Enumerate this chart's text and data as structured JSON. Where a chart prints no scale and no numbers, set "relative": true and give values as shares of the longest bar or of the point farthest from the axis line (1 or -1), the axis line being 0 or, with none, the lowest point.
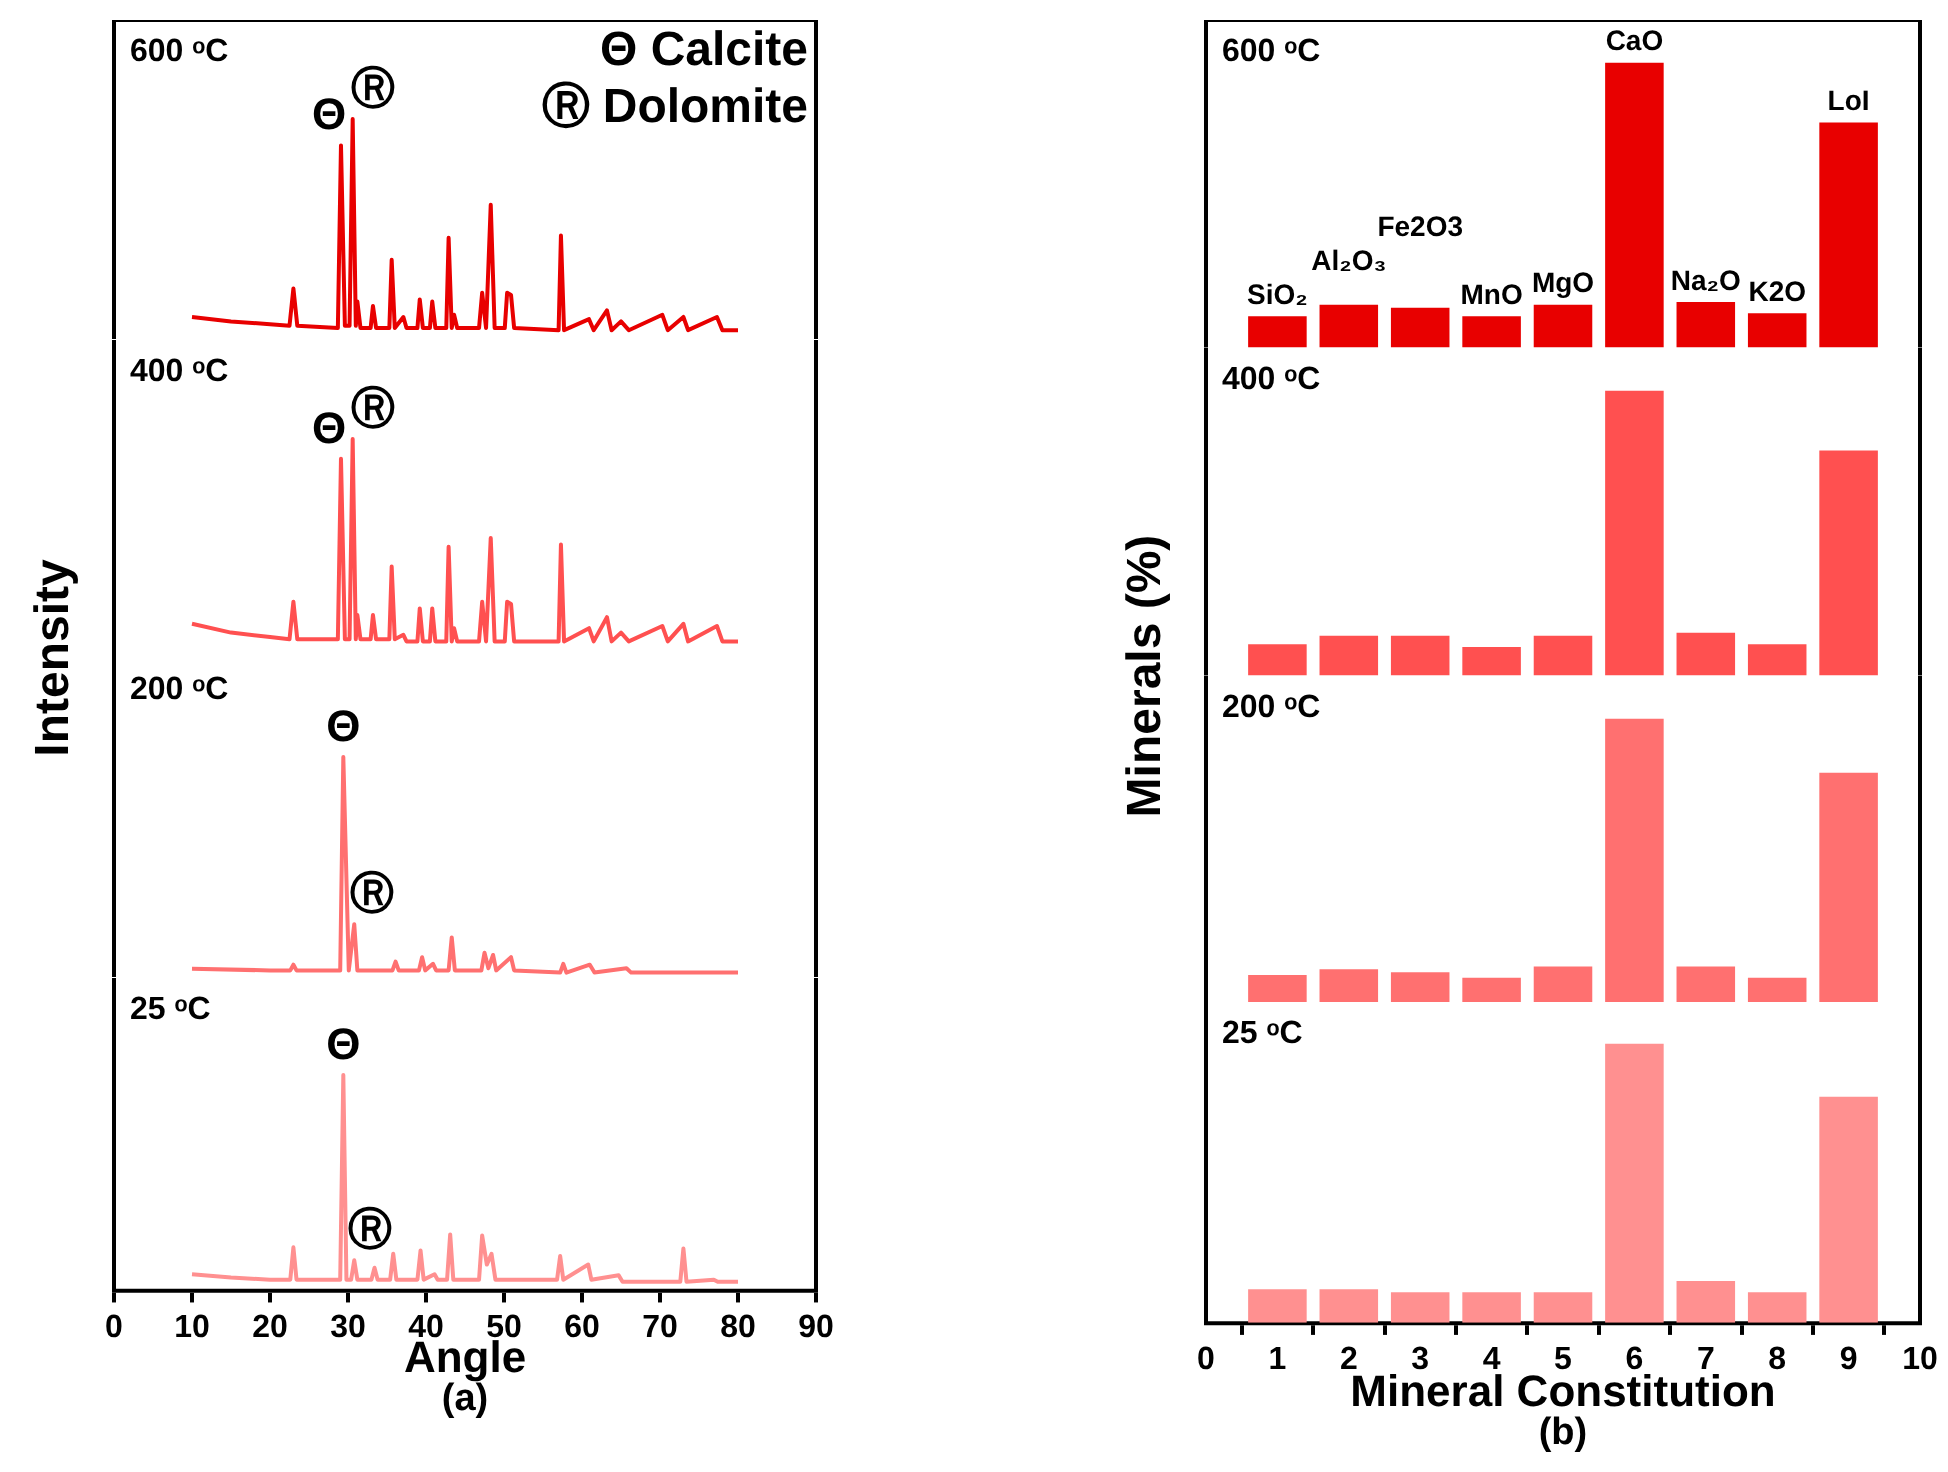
{
  "chart_data": [
    {
      "type": "line",
      "title": "600 ᵒC",
      "ylabel": "Intensity",
      "relative": true,
      "tick_labels": false,
      "xlim": [
        0,
        90
      ],
      "xticks": [
        0,
        10,
        20,
        30,
        40,
        50,
        60,
        70,
        80,
        90
      ],
      "x": [
        10,
        15,
        20,
        22.5,
        23,
        23.5,
        28.7,
        29.1,
        29.6,
        30.2,
        30.6,
        31.0,
        31.2,
        31.6,
        32.9,
        33.2,
        33.6,
        35.3,
        35.6,
        36.0,
        37.1,
        37.5,
        38.9,
        39.2,
        39.6,
        40.5,
        40.8,
        41.2,
        42.6,
        42.9,
        43.3,
        43.6,
        44.0,
        46.8,
        47.2,
        47.7,
        48.3,
        48.8,
        50.1,
        50.4,
        50.9,
        51.3,
        57.0,
        57.3,
        57.7,
        60.9,
        61.5,
        63.2,
        63.8,
        65,
        66,
        70.3,
        71,
        73,
        73.6,
        77.3,
        78,
        80
      ],
      "series": [
        {
          "color": "#e80000",
          "values": [
            0.1,
            0.08,
            0.067,
            0.06,
            0.23,
            0.06,
            0.05,
            0.88,
            0.06,
            0.06,
            1.0,
            0.06,
            0.17,
            0.05,
            0.05,
            0.15,
            0.05,
            0.05,
            0.36,
            0.05,
            0.1,
            0.05,
            0.05,
            0.18,
            0.05,
            0.05,
            0.17,
            0.05,
            0.05,
            0.46,
            0.05,
            0.11,
            0.05,
            0.05,
            0.21,
            0.05,
            0.61,
            0.05,
            0.05,
            0.21,
            0.2,
            0.05,
            0.04,
            0.47,
            0.04,
            0.09,
            0.04,
            0.13,
            0.04,
            0.08,
            0.04,
            0.11,
            0.04,
            0.1,
            0.04,
            0.1,
            0.04,
            0.04
          ]
        }
      ],
      "annotations": [
        {
          "text": "Θ",
          "x": 29.1,
          "y": 0.88
        },
        {
          "text": "Ⓡ",
          "x": 30.6,
          "y": 1.0
        },
        "Θ Calcite",
        "Ⓡ Dolomite"
      ]
    },
    {
      "type": "line",
      "title": "400 ᵒC",
      "relative": true,
      "tick_labels": false,
      "xlim": [
        0,
        90
      ],
      "xticks": [
        0,
        10,
        20,
        30,
        40,
        50,
        60,
        70,
        80,
        90
      ],
      "x": [
        10,
        15,
        20,
        22.5,
        23,
        23.5,
        28.7,
        29.1,
        29.6,
        30.2,
        30.6,
        31.0,
        31.2,
        31.6,
        32.9,
        33.2,
        33.6,
        35.3,
        35.6,
        36.0,
        37.1,
        37.5,
        38.9,
        39.2,
        39.6,
        40.5,
        40.8,
        41.2,
        42.6,
        42.9,
        43.3,
        43.6,
        44.0,
        46.8,
        47.2,
        47.7,
        48.3,
        48.8,
        50.1,
        50.4,
        50.9,
        51.3,
        57.0,
        57.3,
        57.7,
        60.9,
        61.5,
        63.2,
        63.8,
        65,
        66,
        70.3,
        71,
        73,
        73.6,
        77.3,
        78,
        80
      ],
      "series": [
        {
          "color": "#ff5050",
          "values": [
            0.16,
            0.12,
            0.1,
            0.09,
            0.26,
            0.09,
            0.09,
            0.91,
            0.09,
            0.09,
            1.0,
            0.09,
            0.2,
            0.09,
            0.09,
            0.2,
            0.09,
            0.09,
            0.42,
            0.09,
            0.11,
            0.08,
            0.08,
            0.23,
            0.08,
            0.08,
            0.23,
            0.08,
            0.08,
            0.51,
            0.08,
            0.14,
            0.08,
            0.08,
            0.26,
            0.08,
            0.55,
            0.08,
            0.08,
            0.26,
            0.25,
            0.08,
            0.08,
            0.52,
            0.08,
            0.14,
            0.08,
            0.19,
            0.08,
            0.12,
            0.08,
            0.15,
            0.08,
            0.16,
            0.08,
            0.15,
            0.08,
            0.08
          ]
        }
      ],
      "annotations": [
        {
          "text": "Θ",
          "x": 29.1,
          "y": 0.91
        },
        {
          "text": "Ⓡ",
          "x": 30.6,
          "y": 1.0
        }
      ]
    },
    {
      "type": "line",
      "title": "200 ᵒC",
      "relative": true,
      "tick_labels": false,
      "xlim": [
        0,
        90
      ],
      "xticks": [
        0,
        10,
        20,
        30,
        40,
        50,
        60,
        70,
        80,
        90
      ],
      "x": [
        10,
        20,
        22.6,
        23,
        23.4,
        29.0,
        29.4,
        30.1,
        30.8,
        31.2,
        35.7,
        36.1,
        36.5,
        39.1,
        39.5,
        39.9,
        40.9,
        41.3,
        42.9,
        43.3,
        43.7,
        47.1,
        47.5,
        48.0,
        48.6,
        49.0,
        50.9,
        51.3,
        57.2,
        57.6,
        58.0,
        61,
        61.6,
        65.7,
        66.3,
        80
      ],
      "series": [
        {
          "color": "#ff7070",
          "values": [
            0.037,
            0.03,
            0.03,
            0.056,
            0.03,
            0.03,
            1.0,
            0.03,
            0.24,
            0.03,
            0.03,
            0.07,
            0.03,
            0.03,
            0.09,
            0.03,
            0.06,
            0.03,
            0.03,
            0.18,
            0.03,
            0.03,
            0.11,
            0.04,
            0.1,
            0.03,
            0.09,
            0.03,
            0.02,
            0.06,
            0.02,
            0.056,
            0.02,
            0.04,
            0.02,
            0.02
          ]
        }
      ],
      "annotations": [
        {
          "text": "Θ",
          "x": 29.4,
          "y": 1.0
        },
        {
          "text": "Ⓡ",
          "x": 30.8,
          "y": 0.24
        }
      ]
    },
    {
      "type": "line",
      "title": "25 ᵒC",
      "xlabel": "Angle",
      "relative": true,
      "tick_labels": "x",
      "xlim": [
        0,
        90
      ],
      "xticks": [
        0,
        10,
        20,
        30,
        40,
        50,
        60,
        70,
        80,
        90
      ],
      "x": [
        10,
        15,
        20,
        22.6,
        23,
        23.4,
        29.0,
        29.4,
        29.8,
        30.4,
        30.8,
        31.2,
        33.0,
        33.4,
        33.8,
        35.4,
        35.8,
        36.2,
        38.9,
        39.3,
        39.7,
        41.1,
        41.5,
        42.7,
        43.1,
        43.5,
        46.8,
        47.2,
        47.8,
        48.4,
        48.9,
        56.8,
        57.2,
        57.6,
        60.8,
        61.2,
        64.7,
        65.2,
        72.6,
        73,
        73.4,
        76.9,
        77.4,
        80
      ],
      "series": [
        {
          "color": "#ff9090",
          "values": [
            0.075,
            0.06,
            0.05,
            0.05,
            0.2,
            0.05,
            0.05,
            1.0,
            0.05,
            0.05,
            0.14,
            0.05,
            0.05,
            0.105,
            0.05,
            0.05,
            0.17,
            0.05,
            0.05,
            0.185,
            0.05,
            0.075,
            0.05,
            0.05,
            0.26,
            0.05,
            0.05,
            0.255,
            0.12,
            0.17,
            0.05,
            0.05,
            0.16,
            0.05,
            0.12,
            0.05,
            0.07,
            0.04,
            0.04,
            0.195,
            0.04,
            0.05,
            0.04,
            0.04
          ]
        }
      ],
      "annotations": [
        {
          "text": "Θ",
          "x": 29.4,
          "y": 1.0
        },
        {
          "text": "Ⓡ",
          "x": 30.8,
          "y": 0.14
        },
        "(a)"
      ]
    },
    {
      "type": "bar",
      "title": "600 ᵒC",
      "ylabel": "Minerals (%)",
      "relative": true,
      "tick_labels": false,
      "xlim": [
        0,
        10
      ],
      "xticks": [
        0,
        1,
        2,
        3,
        4,
        5,
        6,
        7,
        8,
        9,
        10
      ],
      "x": [
        1,
        2,
        3,
        4,
        5,
        6,
        7,
        8,
        9
      ],
      "series": [
        {
          "color": "#e80000",
          "values": [
            0.11,
            0.15,
            0.14,
            0.11,
            0.15,
            1,
            0.16,
            0.12,
            0.79
          ]
        }
      ],
      "annotations": [
        {
          "text": "SiO₂",
          "x": 1,
          "y": 0.11
        },
        {
          "text": "Al₂O₃",
          "x": 2,
          "y": 0.15
        },
        {
          "text": "Fe2O3",
          "x": 3,
          "y": 0.14
        },
        {
          "text": "MnO",
          "x": 4,
          "y": 0.11
        },
        {
          "text": "MgO",
          "x": 5,
          "y": 0.15
        },
        {
          "text": "CaO",
          "x": 6,
          "y": 1
        },
        {
          "text": "Na₂O",
          "x": 7,
          "y": 0.16
        },
        {
          "text": "K2O",
          "x": 8,
          "y": 0.12
        },
        {
          "text": "LoI",
          "x": 9,
          "y": 0.79
        }
      ]
    },
    {
      "type": "bar",
      "title": "400 ᵒC",
      "relative": true,
      "tick_labels": false,
      "xlim": [
        0,
        10
      ],
      "xticks": [
        0,
        1,
        2,
        3,
        4,
        5,
        6,
        7,
        8,
        9,
        10
      ],
      "x": [
        1,
        2,
        3,
        4,
        5,
        6,
        7,
        8,
        9
      ],
      "series": [
        {
          "color": "#ff5050",
          "values": [
            0.11,
            0.14,
            0.14,
            0.1,
            0.14,
            1,
            0.15,
            0.11,
            0.79
          ]
        }
      ]
    },
    {
      "type": "bar",
      "title": "200 ᵒC",
      "relative": true,
      "tick_labels": false,
      "xlim": [
        0,
        10
      ],
      "xticks": [
        0,
        1,
        2,
        3,
        4,
        5,
        6,
        7,
        8,
        9,
        10
      ],
      "x": [
        1,
        2,
        3,
        4,
        5,
        6,
        7,
        8,
        9
      ],
      "series": [
        {
          "color": "#ff7070",
          "values": [
            0.1,
            0.12,
            0.11,
            0.09,
            0.13,
            1,
            0.13,
            0.09,
            0.81
          ]
        }
      ]
    },
    {
      "type": "bar",
      "title": "25 ᵒC",
      "xlabel": "Mineral Constitution",
      "relative": true,
      "tick_labels": "x",
      "xlim": [
        0,
        10
      ],
      "xticks": [
        0,
        1,
        2,
        3,
        4,
        5,
        6,
        7,
        8,
        9,
        10
      ],
      "x": [
        1,
        2,
        3,
        4,
        5,
        6,
        7,
        8,
        9
      ],
      "series": [
        {
          "color": "#ff9090",
          "values": [
            0.12,
            0.12,
            0.11,
            0.11,
            0.11,
            1,
            0.15,
            0.11,
            0.81
          ]
        }
      ],
      "annotations": [
        "(b)"
      ]
    }
  ]
}
